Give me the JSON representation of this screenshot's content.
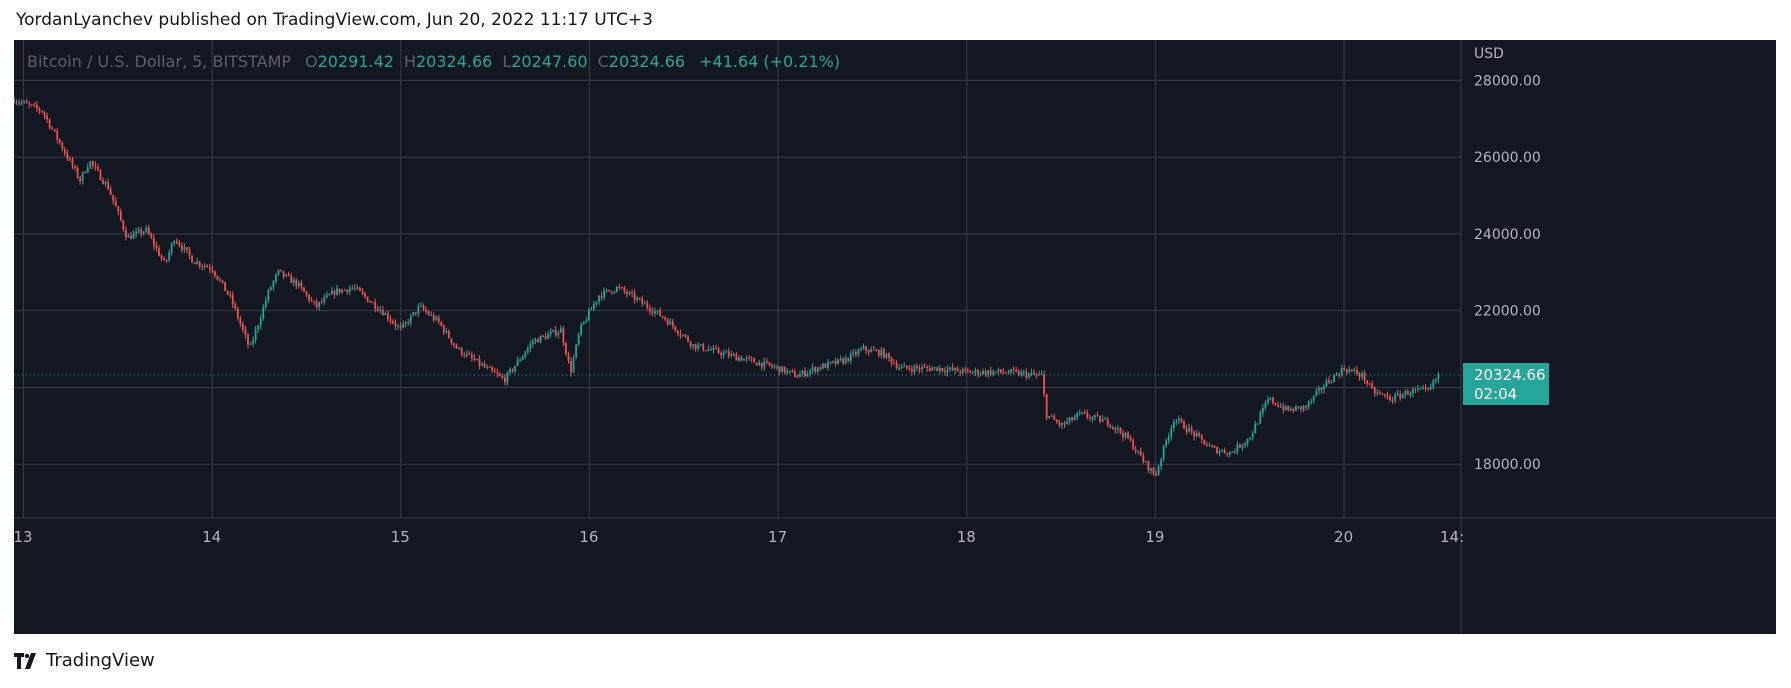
{
  "header": {
    "author": "YordanLyanchev",
    "published_text": "published on TradingView.com,",
    "date": "Jun 20, 2022 11:17 UTC+3"
  },
  "legend": {
    "symbol": "Bitcoin / U.S. Dollar, 5, BITSTAMP",
    "open_label": "O",
    "open": "20291.42",
    "high_label": "H",
    "high": "20324.66",
    "low_label": "L",
    "low": "20247.60",
    "close_label": "C",
    "close": "20324.66",
    "change": "+41.64 (+0.21%)"
  },
  "price_tag": {
    "price": "20324.66",
    "countdown": "02:04"
  },
  "footer": {
    "brand": "TradingView",
    "logo_icon": "tradingview-logo-icon"
  },
  "colors": {
    "background": "#131722",
    "grid": "#3a3e4a",
    "text": "#b2b5be",
    "up": "#26a69a",
    "down": "#ef5350",
    "tag": "#26a69a"
  },
  "chart_data": {
    "type": "candlestick",
    "currency": "USD",
    "y_ticks": [
      "28000.00",
      "26000.00",
      "24000.00",
      "22000.00",
      "18000.00"
    ],
    "ylim": [
      16600,
      29050
    ],
    "x_ticks": [
      "13",
      "14",
      "15",
      "16",
      "17",
      "18",
      "19",
      "20",
      "14:"
    ],
    "x_values": [
      13,
      14,
      15,
      16,
      17,
      18,
      19,
      20,
      20.583
    ],
    "xlim": [
      12.95,
      20.62
    ],
    "last_price": 20324.66,
    "grid": true,
    "price_path": [
      [
        12.95,
        27500
      ],
      [
        13.1,
        27200
      ],
      [
        13.2,
        26300
      ],
      [
        13.3,
        25400
      ],
      [
        13.35,
        25900
      ],
      [
        13.45,
        25200
      ],
      [
        13.55,
        23900
      ],
      [
        13.65,
        24100
      ],
      [
        13.75,
        23200
      ],
      [
        13.8,
        23900
      ],
      [
        13.9,
        23300
      ],
      [
        14.0,
        23100
      ],
      [
        14.1,
        22300
      ],
      [
        14.2,
        21000
      ],
      [
        14.3,
        22500
      ],
      [
        14.35,
        23000
      ],
      [
        14.45,
        22700
      ],
      [
        14.55,
        22100
      ],
      [
        14.65,
        22500
      ],
      [
        14.75,
        22600
      ],
      [
        14.9,
        22000
      ],
      [
        15.0,
        21500
      ],
      [
        15.1,
        22100
      ],
      [
        15.2,
        21700
      ],
      [
        15.3,
        21000
      ],
      [
        15.45,
        20500
      ],
      [
        15.55,
        20200
      ],
      [
        15.7,
        21200
      ],
      [
        15.85,
        21500
      ],
      [
        15.9,
        20400
      ],
      [
        15.95,
        21500
      ],
      [
        16.05,
        22400
      ],
      [
        16.15,
        22600
      ],
      [
        16.25,
        22300
      ],
      [
        16.4,
        21800
      ],
      [
        16.55,
        21100
      ],
      [
        16.7,
        20900
      ],
      [
        16.85,
        20700
      ],
      [
        17.0,
        20500
      ],
      [
        17.1,
        20300
      ],
      [
        17.2,
        20500
      ],
      [
        17.35,
        20700
      ],
      [
        17.45,
        21000
      ],
      [
        17.55,
        20900
      ],
      [
        17.65,
        20500
      ],
      [
        17.85,
        20500
      ],
      [
        18.0,
        20400
      ],
      [
        18.2,
        20400
      ],
      [
        18.4,
        20300
      ],
      [
        18.42,
        19300
      ],
      [
        18.5,
        19000
      ],
      [
        18.6,
        19300
      ],
      [
        18.75,
        19100
      ],
      [
        18.85,
        18700
      ],
      [
        18.95,
        18000
      ],
      [
        19.0,
        17700
      ],
      [
        19.05,
        18500
      ],
      [
        19.1,
        19200
      ],
      [
        19.2,
        18800
      ],
      [
        19.3,
        18400
      ],
      [
        19.4,
        18300
      ],
      [
        19.5,
        18700
      ],
      [
        19.6,
        19700
      ],
      [
        19.7,
        19400
      ],
      [
        19.8,
        19500
      ],
      [
        19.9,
        20100
      ],
      [
        20.0,
        20500
      ],
      [
        20.1,
        20300
      ],
      [
        20.15,
        19900
      ],
      [
        20.25,
        19700
      ],
      [
        20.35,
        19900
      ],
      [
        20.45,
        19900
      ],
      [
        20.5,
        20324.66
      ]
    ]
  }
}
